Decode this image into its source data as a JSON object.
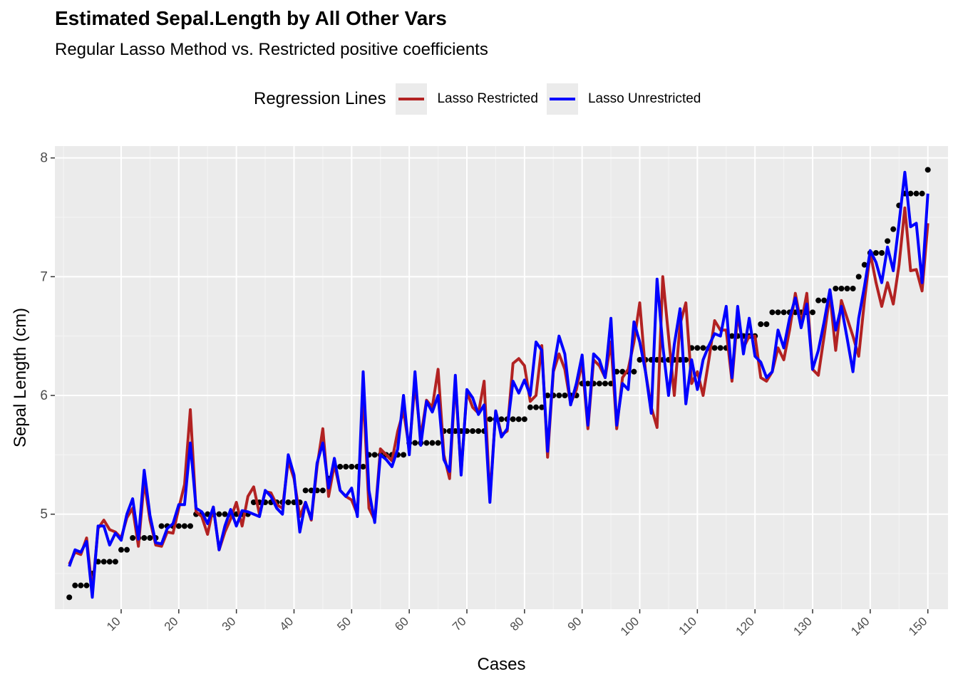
{
  "chart_data": {
    "type": "line",
    "title": "Estimated Sepal.Length by All Other Vars",
    "subtitle": "Regular Lasso Method vs. Restricted positive coefficients",
    "xlabel": "Cases",
    "ylabel": "Sepal Length (cm)",
    "xlim": [
      -1.5,
      153.5
    ],
    "ylim": [
      4.2,
      8.1
    ],
    "x_ticks": [
      10,
      20,
      30,
      40,
      50,
      60,
      70,
      80,
      90,
      100,
      110,
      120,
      130,
      140,
      150
    ],
    "y_ticks": [
      5,
      6,
      7,
      8
    ],
    "grid": true,
    "legend": {
      "title": "Regression Lines",
      "position": "top",
      "entries": [
        {
          "label": "Lasso Restricted",
          "color": "#b22222"
        },
        {
          "label": "Lasso Unrestricted",
          "color": "#0000ff"
        }
      ]
    },
    "points_color": "#000000",
    "points": [
      4.3,
      4.4,
      4.4,
      4.4,
      4.5,
      4.6,
      4.6,
      4.6,
      4.6,
      4.7,
      4.7,
      4.8,
      4.8,
      4.8,
      4.8,
      4.8,
      4.9,
      4.9,
      4.9,
      4.9,
      4.9,
      4.9,
      5.0,
      5.0,
      5.0,
      5.0,
      5.0,
      5.0,
      5.0,
      5.0,
      5.0,
      5.0,
      5.1,
      5.1,
      5.1,
      5.1,
      5.1,
      5.1,
      5.1,
      5.1,
      5.1,
      5.2,
      5.2,
      5.2,
      5.2,
      5.3,
      5.4,
      5.4,
      5.4,
      5.4,
      5.4,
      5.4,
      5.5,
      5.5,
      5.5,
      5.5,
      5.5,
      5.5,
      5.5,
      5.6,
      5.6,
      5.6,
      5.6,
      5.6,
      5.6,
      5.7,
      5.7,
      5.7,
      5.7,
      5.7,
      5.7,
      5.7,
      5.7,
      5.8,
      5.8,
      5.8,
      5.8,
      5.8,
      5.8,
      5.8,
      5.9,
      5.9,
      5.9,
      6.0,
      6.0,
      6.0,
      6.0,
      6.0,
      6.0,
      6.1,
      6.1,
      6.1,
      6.1,
      6.1,
      6.1,
      6.2,
      6.2,
      6.2,
      6.2,
      6.3,
      6.3,
      6.3,
      6.3,
      6.3,
      6.3,
      6.3,
      6.3,
      6.3,
      6.4,
      6.4,
      6.4,
      6.4,
      6.4,
      6.4,
      6.4,
      6.5,
      6.5,
      6.5,
      6.5,
      6.5,
      6.6,
      6.6,
      6.7,
      6.7,
      6.7,
      6.7,
      6.7,
      6.7,
      6.7,
      6.7,
      6.8,
      6.8,
      6.8,
      6.9,
      6.9,
      6.9,
      6.9,
      7.0,
      7.1,
      7.2,
      7.2,
      7.2,
      7.3,
      7.4,
      7.6,
      7.7,
      7.7,
      7.7,
      7.7,
      7.9
    ],
    "series": [
      {
        "name": "Lasso Restricted",
        "color": "#b22222",
        "values": [
          4.58,
          4.68,
          4.66,
          4.8,
          4.35,
          4.88,
          4.95,
          4.87,
          4.85,
          4.8,
          4.97,
          5.05,
          4.73,
          5.28,
          4.95,
          4.74,
          4.73,
          4.85,
          4.84,
          5.05,
          5.25,
          5.88,
          5.02,
          4.98,
          4.83,
          5.06,
          4.7,
          4.85,
          4.96,
          5.1,
          4.9,
          5.15,
          5.23,
          5.0,
          5.19,
          5.18,
          5.08,
          5.05,
          5.45,
          5.3,
          4.98,
          5.1,
          4.95,
          5.4,
          5.72,
          5.15,
          5.42,
          5.2,
          5.15,
          5.12,
          5.0,
          6.05,
          5.05,
          4.95,
          5.55,
          5.5,
          5.45,
          5.7,
          5.87,
          5.55,
          6.1,
          5.65,
          5.96,
          5.9,
          6.22,
          5.5,
          5.3,
          6.13,
          5.35,
          6.03,
          5.9,
          5.85,
          6.12,
          5.13,
          5.87,
          5.67,
          5.7,
          6.27,
          6.31,
          6.25,
          5.95,
          6.0,
          6.42,
          5.48,
          6.2,
          6.35,
          6.22,
          5.93,
          6.05,
          6.28,
          5.72,
          6.3,
          6.25,
          6.15,
          6.45,
          5.72,
          6.15,
          6.22,
          6.45,
          6.78,
          6.2,
          5.9,
          5.73,
          7.0,
          6.5,
          6.0,
          6.6,
          6.78,
          6.1,
          6.2,
          6.0,
          6.3,
          6.63,
          6.55,
          6.55,
          6.12,
          6.68,
          6.4,
          6.5,
          6.5,
          6.15,
          6.12,
          6.2,
          6.4,
          6.3,
          6.55,
          6.86,
          6.6,
          6.86,
          6.22,
          6.17,
          6.5,
          6.85,
          6.38,
          6.8,
          6.65,
          6.5,
          6.33,
          6.8,
          7.2,
          6.95,
          6.75,
          6.95,
          6.77,
          7.1,
          7.58,
          7.05,
          7.06,
          6.88,
          7.45
        ]
      },
      {
        "name": "Lasso Unrestricted",
        "color": "#0000ff",
        "values": [
          4.56,
          4.7,
          4.68,
          4.77,
          4.3,
          4.9,
          4.9,
          4.74,
          4.84,
          4.78,
          5.0,
          5.13,
          4.79,
          5.37,
          4.99,
          4.76,
          4.75,
          4.88,
          4.92,
          5.08,
          5.08,
          5.6,
          5.05,
          5.02,
          4.92,
          5.06,
          4.7,
          4.9,
          5.04,
          4.9,
          5.03,
          5.02,
          5.0,
          4.98,
          5.2,
          5.15,
          5.05,
          5.0,
          5.5,
          5.33,
          4.85,
          5.1,
          4.96,
          5.43,
          5.6,
          5.22,
          5.47,
          5.2,
          5.15,
          5.22,
          4.98,
          6.2,
          5.2,
          4.93,
          5.5,
          5.46,
          5.4,
          5.55,
          6.0,
          5.5,
          6.2,
          5.58,
          5.95,
          5.86,
          6.0,
          5.46,
          5.36,
          6.17,
          5.33,
          6.05,
          5.98,
          5.84,
          5.92,
          5.1,
          5.87,
          5.65,
          5.72,
          6.12,
          6.02,
          6.13,
          6.0,
          6.45,
          6.38,
          5.53,
          6.22,
          6.5,
          6.35,
          5.92,
          6.1,
          6.34,
          5.75,
          6.35,
          6.3,
          6.15,
          6.65,
          5.75,
          6.1,
          6.05,
          6.62,
          6.45,
          6.2,
          5.85,
          6.98,
          6.42,
          6.0,
          6.43,
          6.73,
          5.93,
          6.3,
          6.05,
          6.3,
          6.42,
          6.52,
          6.5,
          6.75,
          6.15,
          6.75,
          6.35,
          6.65,
          6.33,
          6.28,
          6.15,
          6.2,
          6.55,
          6.4,
          6.65,
          6.82,
          6.57,
          6.77,
          6.22,
          6.38,
          6.62,
          6.89,
          6.55,
          6.75,
          6.48,
          6.2,
          6.65,
          6.92,
          7.22,
          7.12,
          6.95,
          7.25,
          7.05,
          7.45,
          7.88,
          7.42,
          7.45,
          6.95,
          7.7
        ]
      }
    ]
  }
}
